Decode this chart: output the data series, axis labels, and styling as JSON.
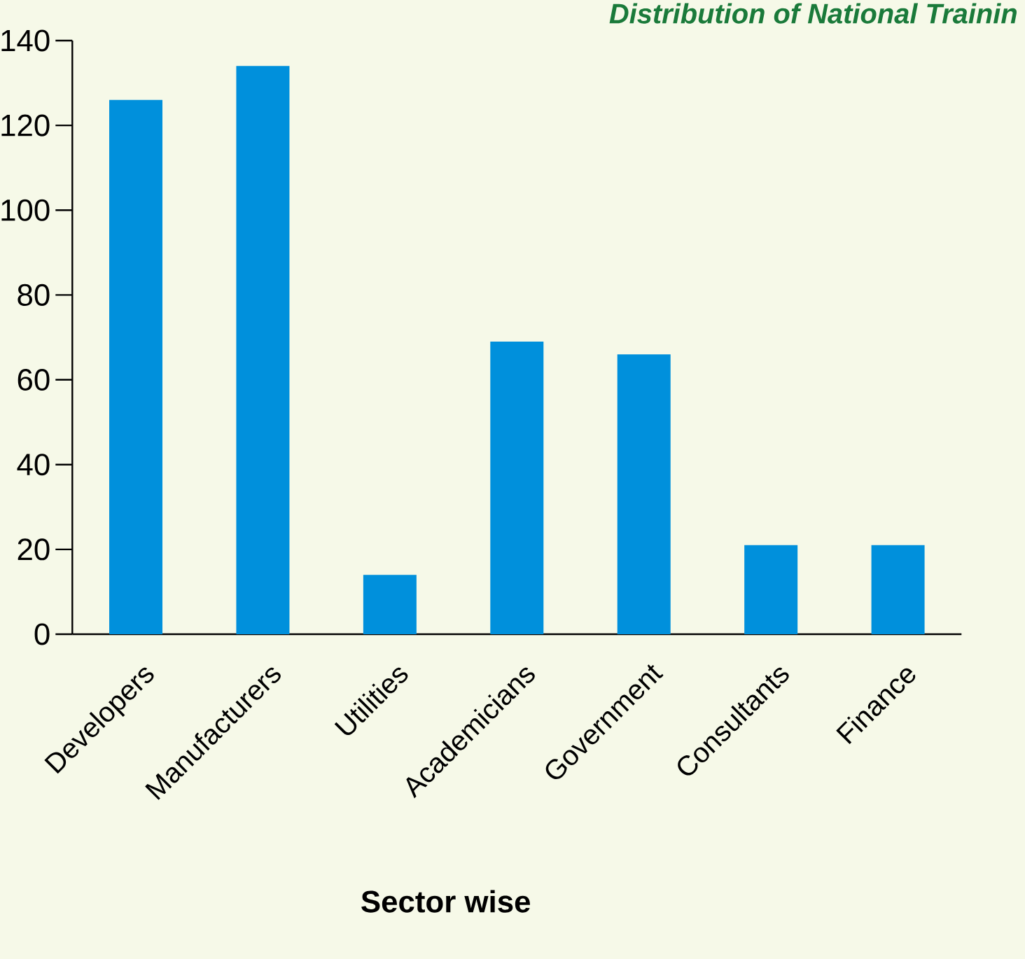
{
  "chart_data": {
    "type": "bar",
    "title": "Distribution of National Trainin",
    "xlabel": "Sector wise",
    "categories": [
      "Developers",
      "Manufacturers",
      "Utilities",
      "Academicians",
      "Government",
      "Consultants",
      "Finance"
    ],
    "values": [
      126,
      134,
      14,
      69,
      66,
      21,
      21
    ],
    "color": "#0090dc",
    "ylim": [
      0,
      140
    ],
    "yticks": [
      0,
      20,
      40,
      60,
      80,
      100,
      120,
      140
    ]
  }
}
